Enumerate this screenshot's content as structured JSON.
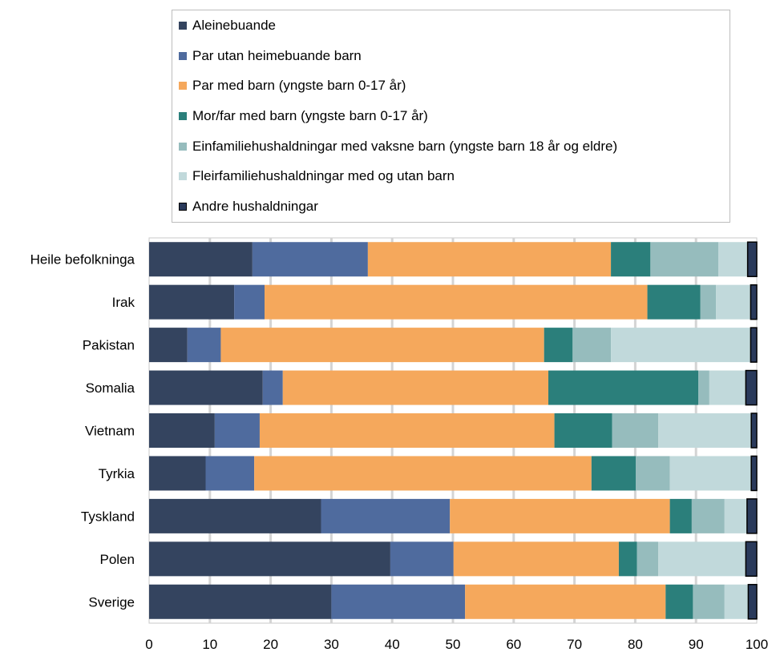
{
  "chart_data": {
    "type": "bar",
    "orientation": "horizontal",
    "stacked": true,
    "categories": [
      "Heile befolkninga",
      "Irak",
      "Pakistan",
      "Somalia",
      "Vietnam",
      "Tyrkia",
      "Tyskland",
      "Polen",
      "Sverige"
    ],
    "series": [
      {
        "name": "Aleinebuande",
        "color": "#34445f",
        "values": [
          17,
          14,
          6.3,
          18.7,
          10.8,
          9.3,
          28.3,
          39.7,
          30
        ]
      },
      {
        "name": "Par utan heimebuande barn",
        "color": "#4f6b9e",
        "values": [
          19,
          5,
          5.5,
          3.3,
          7.4,
          8.0,
          21.2,
          10.4,
          22
        ]
      },
      {
        "name": "Par med barn (yngste barn 0-17 år)",
        "color": "#f5a85c",
        "values": [
          40,
          63,
          53.2,
          43.7,
          48.5,
          55.5,
          36.2,
          27.2,
          33
        ]
      },
      {
        "name": "Mor/far med barn (yngste barn 0-17 år)",
        "color": "#2b7f7b",
        "values": [
          6.5,
          8.7,
          4.7,
          24.7,
          9.5,
          7.3,
          3.6,
          3.0,
          4.5
        ]
      },
      {
        "name": "Einfamiliehushaldningar med vaksne barn (yngste barn 18 år og eldre)",
        "color": "#96bcbd",
        "values": [
          11.2,
          2.6,
          6.3,
          1.8,
          7.6,
          5.6,
          5.4,
          3.5,
          5.2
        ]
      },
      {
        "name": "Fleirfamiliehushaldningar med og utan barn",
        "color": "#c1d9db",
        "values": [
          4.8,
          5.7,
          23.0,
          6.0,
          15.3,
          13.4,
          3.7,
          14.4,
          3.9
        ]
      },
      {
        "name": "Andre hushaldningar",
        "color": "#2a3a5b",
        "values": [
          1.5,
          1.0,
          1.0,
          1.8,
          0.9,
          0.9,
          1.6,
          1.8,
          1.4
        ]
      }
    ],
    "xlim": [
      0,
      100
    ],
    "xticks": [
      "0",
      "10",
      "20",
      "30",
      "40",
      "50",
      "60",
      "70",
      "80",
      "90",
      "100"
    ],
    "grid": true,
    "legend_position": "top"
  }
}
